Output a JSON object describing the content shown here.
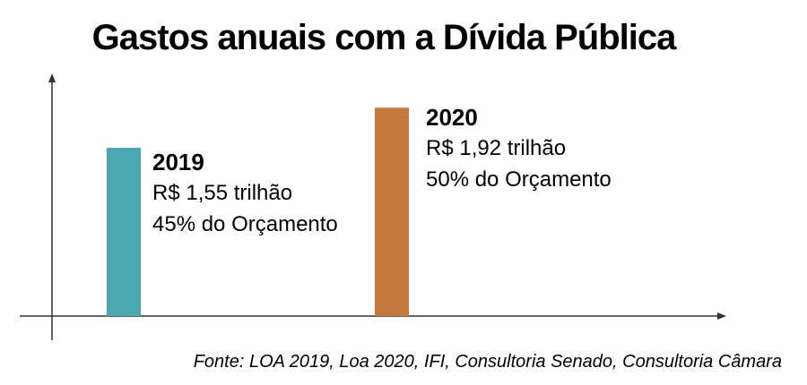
{
  "chart_data": {
    "type": "bar",
    "title": "Gastos anuais com a Dívida Pública",
    "categories": [
      "2019",
      "2020"
    ],
    "values": [
      1.55,
      1.92
    ],
    "value_labels": [
      "R$ 1,55 trilhão",
      "R$ 1,92 trilhão"
    ],
    "share_labels": [
      "45% do Orçamento",
      "50% do Orçamento"
    ],
    "colors": [
      "#4ba7b1",
      "#c4783c"
    ],
    "xlabel": "",
    "ylabel": "",
    "ylim": [
      0,
      2.4
    ],
    "grid": false,
    "source": "Fonte:  LOA 2019, Loa 2020, IFI, Consultoria Senado, Consultoria Câmara"
  }
}
